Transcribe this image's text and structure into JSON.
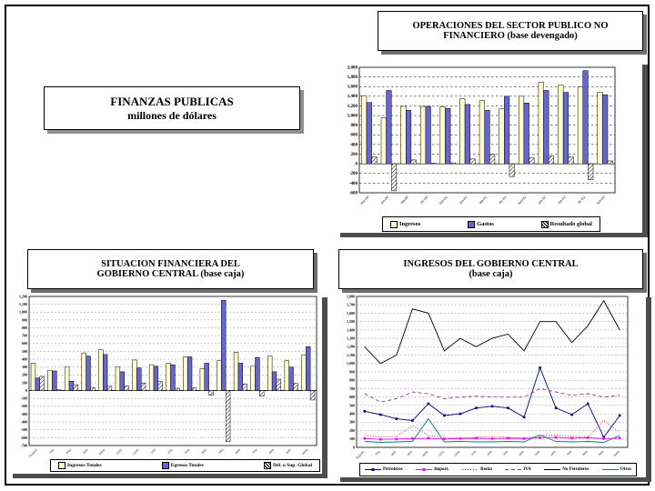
{
  "main_title": {
    "line1": "FINANZAS PUBLICAS",
    "line2": "millones de dólares"
  },
  "box_titles": {
    "operaciones": {
      "line1": "OPERACIONES DEL SECTOR PUBLICO NO",
      "line2": "FINANCIERO (base devengado)"
    },
    "situacion": {
      "line1": "SITUACION FINANCIERA DEL",
      "line2": "GOBIERNO CENTRAL (base caja)"
    },
    "ingresos": {
      "line1": "INGRESOS DEL GOBIERNO CENTRAL",
      "line2": "(base caja)"
    }
  },
  "chart_data": [
    {
      "type": "bar",
      "title": "OPERACIONES DEL SECTOR PUBLICO NO FINANCIERO (base devengado)",
      "xlabel": "",
      "ylabel": "",
      "ylim": [
        -600,
        2000
      ],
      "ystep": 200,
      "grid": true,
      "legend_position": "bottom",
      "categories": [
        "mar-00",
        "jun-00",
        "sep-00",
        "dic-00",
        "mar-01",
        "jun-01",
        "sep-01",
        "dic-01",
        "mar-02",
        "jun-02",
        "sep-02",
        "dic-02",
        "mar-03"
      ],
      "series": [
        {
          "name": "Ingresos",
          "color": "#FFFFCC",
          "values": [
            1410,
            950,
            1190,
            1190,
            1180,
            1350,
            1310,
            1140,
            1400,
            1690,
            1630,
            1600,
            1480
          ]
        },
        {
          "name": "Gastos",
          "color": "#6666CC",
          "values": [
            1270,
            1520,
            1110,
            1190,
            1150,
            1230,
            1110,
            1400,
            1260,
            1520,
            1480,
            1930,
            1430
          ]
        },
        {
          "name": "Resultado global",
          "hatch": true,
          "color": "#FFFFFF",
          "values": [
            140,
            -560,
            80,
            10,
            20,
            100,
            195,
            -265,
            120,
            165,
            145,
            -330,
            60
          ]
        }
      ]
    },
    {
      "type": "bar",
      "title": "SITUACION FINANCIERA DEL GOBIERNO CENTRAL (base caja)",
      "xlabel": "",
      "ylabel": "",
      "ylim": [
        -700,
        1200
      ],
      "ystep": 100,
      "grid": true,
      "legend_position": "bottom",
      "categories": [
        "Total/02",
        "7/02",
        "8/02",
        "9/02",
        "10/02",
        "11/02",
        "12/02",
        "1/03",
        "2/03",
        "3/03",
        "4/03",
        "5/03",
        "6/03",
        "7/03",
        "8/03",
        "9/03",
        "10/03"
      ],
      "series": [
        {
          "name": "Ingresos Totales",
          "color": "#FFFFCC",
          "values": [
            350,
            260,
            300,
            480,
            520,
            300,
            390,
            330,
            350,
            430,
            280,
            380,
            490,
            310,
            440,
            380,
            450
          ]
        },
        {
          "name": "Egresos Totales",
          "color": "#6666CC",
          "values": [
            160,
            250,
            120,
            440,
            460,
            240,
            290,
            310,
            330,
            430,
            350,
            1150,
            350,
            420,
            240,
            300,
            560
          ]
        },
        {
          "name": "Déf. o Sup. Global",
          "hatch": true,
          "color": "#FFFFFF",
          "values": [
            180,
            10,
            75,
            40,
            55,
            60,
            95,
            115,
            30,
            35,
            -60,
            -650,
            85,
            -70,
            145,
            90,
            -120
          ]
        }
      ]
    },
    {
      "type": "line",
      "title": "INGRESOS DEL GOBIERNO CENTRAL (base caja)",
      "xlabel": "",
      "ylabel": "",
      "ylim": [
        0,
        1800
      ],
      "ystep": 100,
      "grid": true,
      "legend_position": "bottom",
      "categories": [
        "Total/02",
        "7/02",
        "8/02",
        "9/02",
        "10/02",
        "11/02",
        "12/02",
        "1/03",
        "2/03",
        "3/03",
        "4/03",
        "5/03",
        "6/03",
        "7/03",
        "8/03",
        "9/03",
        "10/03"
      ],
      "series": [
        {
          "name": "Petroleros",
          "color": "#000080",
          "marker": true,
          "values": [
            430,
            390,
            340,
            320,
            520,
            380,
            400,
            470,
            490,
            470,
            360,
            950,
            470,
            390,
            520,
            120,
            380
          ]
        },
        {
          "name": "Import.",
          "color": "#FF00FF",
          "marker": true,
          "values": [
            105,
            95,
            100,
            105,
            110,
            100,
            105,
            110,
            105,
            110,
            105,
            115,
            120,
            110,
            115,
            105,
            110
          ]
        },
        {
          "name": "Renta",
          "color": "#FF0000",
          "dash": "1,2",
          "values": [
            150,
            120,
            130,
            260,
            140,
            120,
            110,
            120,
            130,
            120,
            110,
            140,
            150,
            130,
            120,
            320,
            180
          ]
        },
        {
          "name": "IVA",
          "color": "#993399",
          "dash": "4,3",
          "values": [
            640,
            540,
            580,
            660,
            640,
            580,
            600,
            610,
            600,
            600,
            600,
            700,
            660,
            620,
            640,
            600,
            620
          ]
        },
        {
          "name": "No Petroleros",
          "color": "#000000",
          "values": [
            1200,
            1000,
            1100,
            1650,
            1600,
            1150,
            1300,
            1200,
            1300,
            1350,
            1150,
            1500,
            1500,
            1250,
            1450,
            1750,
            1400
          ]
        },
        {
          "name": "Otros",
          "color": "#008080",
          "values": [
            70,
            60,
            65,
            70,
            340,
            65,
            70,
            65,
            65,
            70,
            65,
            150,
            70,
            65,
            70,
            60,
            140
          ]
        }
      ]
    }
  ]
}
